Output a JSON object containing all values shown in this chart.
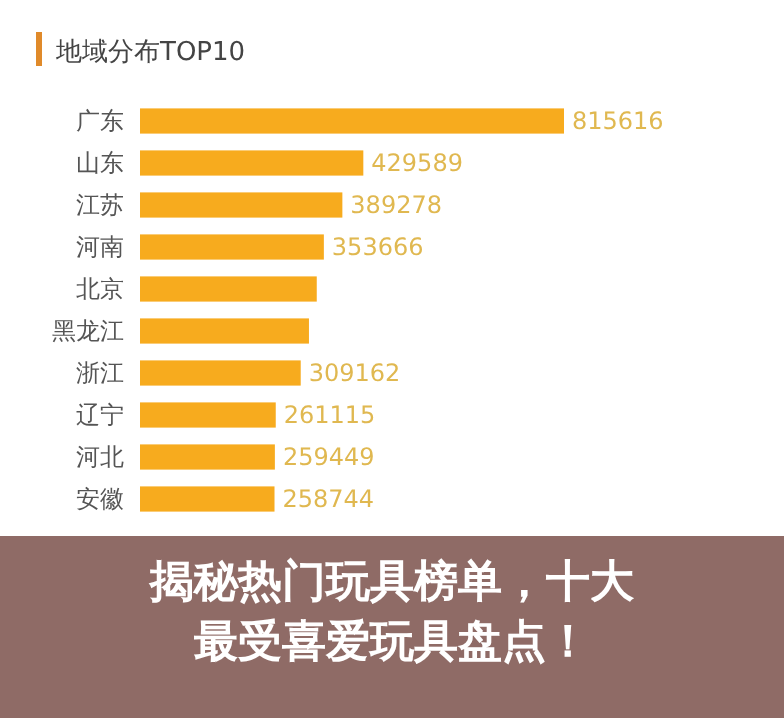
{
  "chart_data": {
    "type": "bar",
    "orientation": "horizontal",
    "title": "地域分布TOP10",
    "categories": [
      "广东",
      "山东",
      "江苏",
      "河南",
      "北京",
      "黑龙江",
      "浙江",
      "辽宁",
      "河北",
      "安徽"
    ],
    "values": [
      815616,
      429589,
      389278,
      353666,
      340000,
      325000,
      309162,
      261115,
      259449,
      258744
    ],
    "value_labels": [
      "815616",
      "429589",
      "389278",
      "353666",
      null,
      null,
      "309162",
      "261115",
      "259449",
      "258744"
    ],
    "color": "#f7ab1e",
    "annotations": [
      "揭秘热门玩具榜单，十大最受喜爱玩具盘点！"
    ]
  }
}
